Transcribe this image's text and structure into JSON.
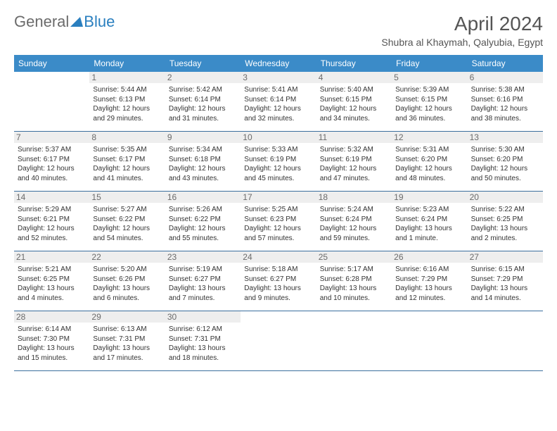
{
  "brand": {
    "text1": "General",
    "text2": "Blue"
  },
  "title": "April 2024",
  "location": "Shubra al Khaymah, Qalyubia, Egypt",
  "colors": {
    "header_bg": "#3b8bc8",
    "header_text": "#ffffff",
    "daynum_bg": "#eeeeee",
    "daynum_text": "#6b6b6b",
    "divider": "#3b6f9e",
    "body_text": "#333333",
    "brand_gray": "#6b6b6b",
    "brand_blue": "#2a7fbf"
  },
  "day_names": [
    "Sunday",
    "Monday",
    "Tuesday",
    "Wednesday",
    "Thursday",
    "Friday",
    "Saturday"
  ],
  "weeks": [
    [
      {
        "n": "",
        "sr": "",
        "ss": "",
        "dl": ""
      },
      {
        "n": "1",
        "sr": "Sunrise: 5:44 AM",
        "ss": "Sunset: 6:13 PM",
        "dl": "Daylight: 12 hours and 29 minutes."
      },
      {
        "n": "2",
        "sr": "Sunrise: 5:42 AM",
        "ss": "Sunset: 6:14 PM",
        "dl": "Daylight: 12 hours and 31 minutes."
      },
      {
        "n": "3",
        "sr": "Sunrise: 5:41 AM",
        "ss": "Sunset: 6:14 PM",
        "dl": "Daylight: 12 hours and 32 minutes."
      },
      {
        "n": "4",
        "sr": "Sunrise: 5:40 AM",
        "ss": "Sunset: 6:15 PM",
        "dl": "Daylight: 12 hours and 34 minutes."
      },
      {
        "n": "5",
        "sr": "Sunrise: 5:39 AM",
        "ss": "Sunset: 6:15 PM",
        "dl": "Daylight: 12 hours and 36 minutes."
      },
      {
        "n": "6",
        "sr": "Sunrise: 5:38 AM",
        "ss": "Sunset: 6:16 PM",
        "dl": "Daylight: 12 hours and 38 minutes."
      }
    ],
    [
      {
        "n": "7",
        "sr": "Sunrise: 5:37 AM",
        "ss": "Sunset: 6:17 PM",
        "dl": "Daylight: 12 hours and 40 minutes."
      },
      {
        "n": "8",
        "sr": "Sunrise: 5:35 AM",
        "ss": "Sunset: 6:17 PM",
        "dl": "Daylight: 12 hours and 41 minutes."
      },
      {
        "n": "9",
        "sr": "Sunrise: 5:34 AM",
        "ss": "Sunset: 6:18 PM",
        "dl": "Daylight: 12 hours and 43 minutes."
      },
      {
        "n": "10",
        "sr": "Sunrise: 5:33 AM",
        "ss": "Sunset: 6:19 PM",
        "dl": "Daylight: 12 hours and 45 minutes."
      },
      {
        "n": "11",
        "sr": "Sunrise: 5:32 AM",
        "ss": "Sunset: 6:19 PM",
        "dl": "Daylight: 12 hours and 47 minutes."
      },
      {
        "n": "12",
        "sr": "Sunrise: 5:31 AM",
        "ss": "Sunset: 6:20 PM",
        "dl": "Daylight: 12 hours and 48 minutes."
      },
      {
        "n": "13",
        "sr": "Sunrise: 5:30 AM",
        "ss": "Sunset: 6:20 PM",
        "dl": "Daylight: 12 hours and 50 minutes."
      }
    ],
    [
      {
        "n": "14",
        "sr": "Sunrise: 5:29 AM",
        "ss": "Sunset: 6:21 PM",
        "dl": "Daylight: 12 hours and 52 minutes."
      },
      {
        "n": "15",
        "sr": "Sunrise: 5:27 AM",
        "ss": "Sunset: 6:22 PM",
        "dl": "Daylight: 12 hours and 54 minutes."
      },
      {
        "n": "16",
        "sr": "Sunrise: 5:26 AM",
        "ss": "Sunset: 6:22 PM",
        "dl": "Daylight: 12 hours and 55 minutes."
      },
      {
        "n": "17",
        "sr": "Sunrise: 5:25 AM",
        "ss": "Sunset: 6:23 PM",
        "dl": "Daylight: 12 hours and 57 minutes."
      },
      {
        "n": "18",
        "sr": "Sunrise: 5:24 AM",
        "ss": "Sunset: 6:24 PM",
        "dl": "Daylight: 12 hours and 59 minutes."
      },
      {
        "n": "19",
        "sr": "Sunrise: 5:23 AM",
        "ss": "Sunset: 6:24 PM",
        "dl": "Daylight: 13 hours and 1 minute."
      },
      {
        "n": "20",
        "sr": "Sunrise: 5:22 AM",
        "ss": "Sunset: 6:25 PM",
        "dl": "Daylight: 13 hours and 2 minutes."
      }
    ],
    [
      {
        "n": "21",
        "sr": "Sunrise: 5:21 AM",
        "ss": "Sunset: 6:25 PM",
        "dl": "Daylight: 13 hours and 4 minutes."
      },
      {
        "n": "22",
        "sr": "Sunrise: 5:20 AM",
        "ss": "Sunset: 6:26 PM",
        "dl": "Daylight: 13 hours and 6 minutes."
      },
      {
        "n": "23",
        "sr": "Sunrise: 5:19 AM",
        "ss": "Sunset: 6:27 PM",
        "dl": "Daylight: 13 hours and 7 minutes."
      },
      {
        "n": "24",
        "sr": "Sunrise: 5:18 AM",
        "ss": "Sunset: 6:27 PM",
        "dl": "Daylight: 13 hours and 9 minutes."
      },
      {
        "n": "25",
        "sr": "Sunrise: 5:17 AM",
        "ss": "Sunset: 6:28 PM",
        "dl": "Daylight: 13 hours and 10 minutes."
      },
      {
        "n": "26",
        "sr": "Sunrise: 6:16 AM",
        "ss": "Sunset: 7:29 PM",
        "dl": "Daylight: 13 hours and 12 minutes."
      },
      {
        "n": "27",
        "sr": "Sunrise: 6:15 AM",
        "ss": "Sunset: 7:29 PM",
        "dl": "Daylight: 13 hours and 14 minutes."
      }
    ],
    [
      {
        "n": "28",
        "sr": "Sunrise: 6:14 AM",
        "ss": "Sunset: 7:30 PM",
        "dl": "Daylight: 13 hours and 15 minutes."
      },
      {
        "n": "29",
        "sr": "Sunrise: 6:13 AM",
        "ss": "Sunset: 7:31 PM",
        "dl": "Daylight: 13 hours and 17 minutes."
      },
      {
        "n": "30",
        "sr": "Sunrise: 6:12 AM",
        "ss": "Sunset: 7:31 PM",
        "dl": "Daylight: 13 hours and 18 minutes."
      },
      {
        "n": "",
        "sr": "",
        "ss": "",
        "dl": ""
      },
      {
        "n": "",
        "sr": "",
        "ss": "",
        "dl": ""
      },
      {
        "n": "",
        "sr": "",
        "ss": "",
        "dl": ""
      },
      {
        "n": "",
        "sr": "",
        "ss": "",
        "dl": ""
      }
    ]
  ]
}
